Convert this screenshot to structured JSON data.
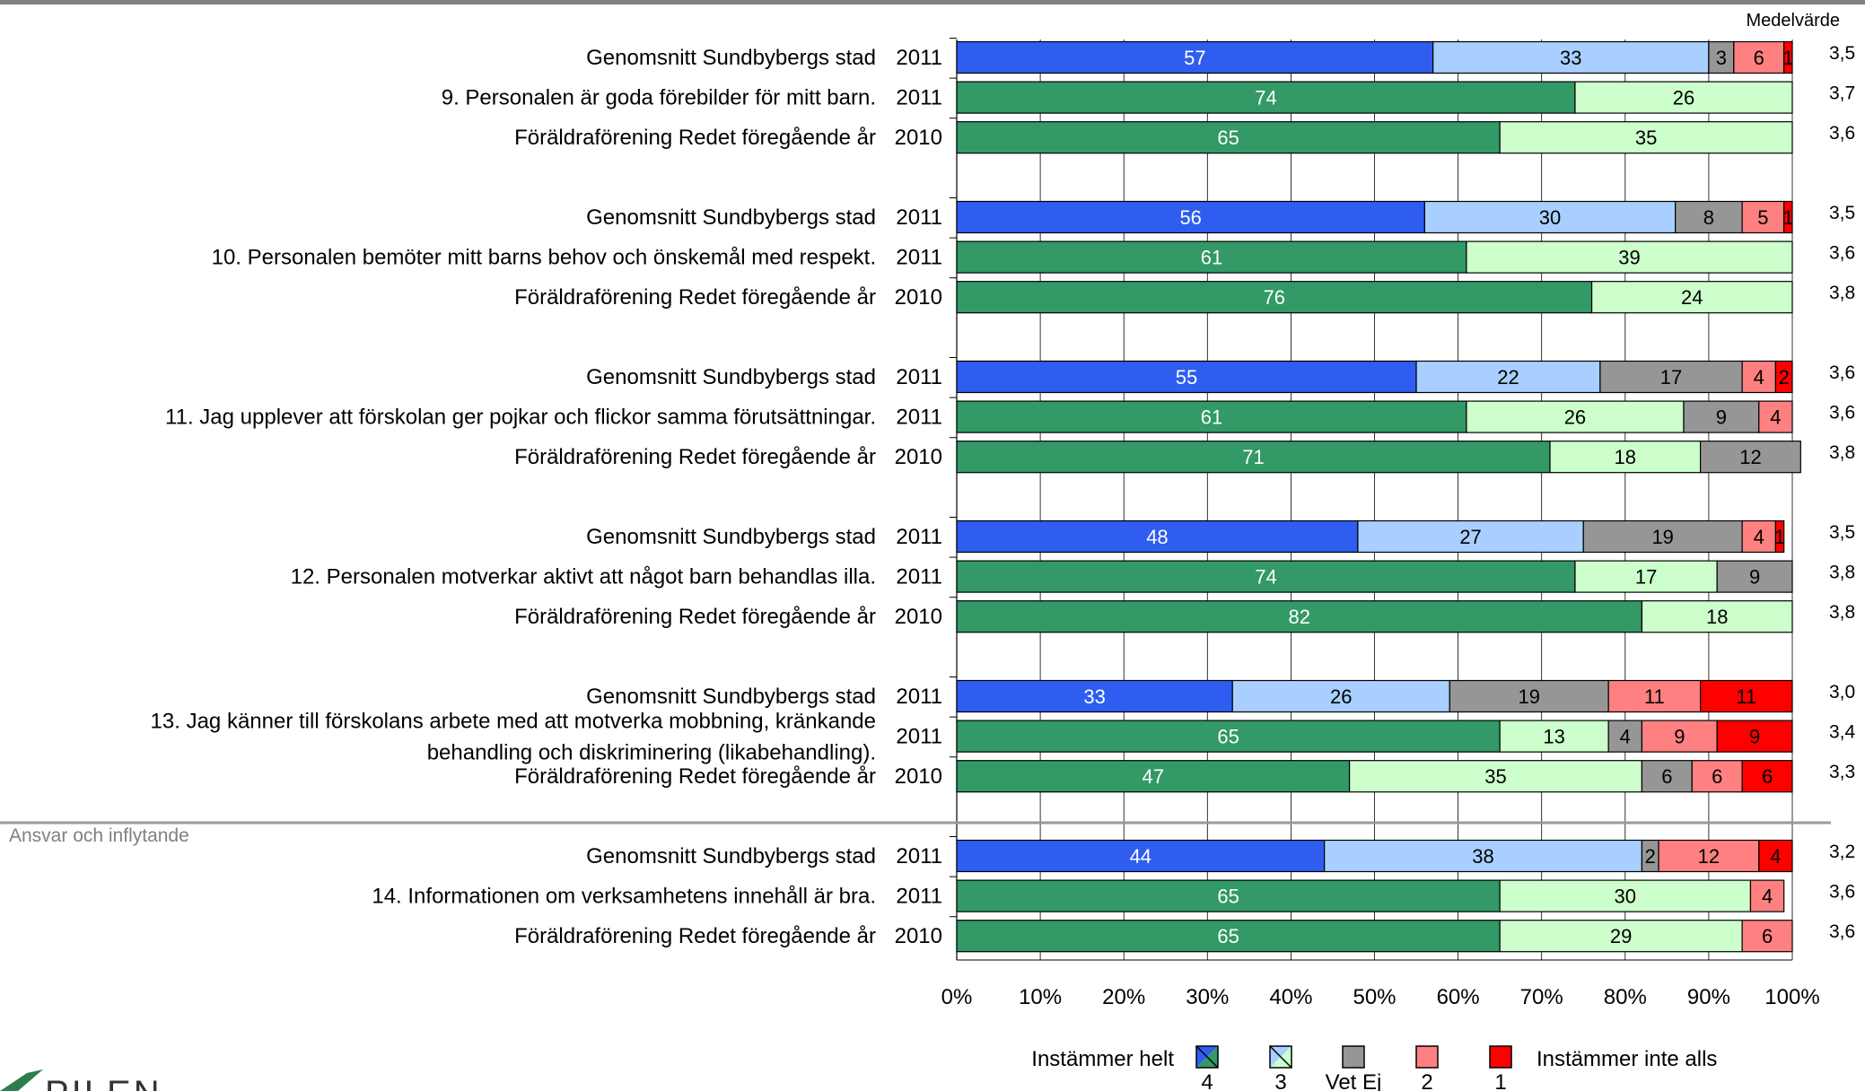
{
  "chart_data": {
    "type": "bar",
    "stacked": "percent",
    "orientation": "horizontal",
    "mean_header": "Medelvärde",
    "section_label": "Ansvar och inflytande",
    "xaxis": {
      "min": 0,
      "max": 100,
      "ticks": [
        "0%",
        "10%",
        "20%",
        "30%",
        "40%",
        "50%",
        "60%",
        "70%",
        "80%",
        "90%",
        "100%"
      ]
    },
    "segment_keys": [
      "4",
      "3",
      "Vet Ej",
      "2",
      "1"
    ],
    "colors": {
      "blue_4": "#2E5DF0",
      "blue_3": "#A8CFFF",
      "green_4": "#339966",
      "green_3": "#CCFFCC",
      "vetej": "#969696",
      "2": "#FF8080",
      "1": "#FF0000",
      "separator": "#999999",
      "grid": "#000000"
    },
    "groups": [
      {
        "question": "9.  Personalen är goda förebilder för mitt barn.",
        "rows": [
          {
            "label": "Genomsnitt Sundbybergs stad",
            "year": "2011",
            "scheme": "blue",
            "values": [
              57,
              33,
              3,
              6,
              1
            ],
            "mean": "3,5"
          },
          {
            "label": "9.  Personalen är goda förebilder för mitt barn.",
            "year": "2011",
            "scheme": "green",
            "values": [
              74,
              26,
              0,
              0,
              0
            ],
            "mean": "3,7"
          },
          {
            "label": "Föräldraförening Redet föregående år",
            "year": "2010",
            "scheme": "green",
            "values": [
              65,
              35,
              0,
              0,
              0
            ],
            "mean": "3,6"
          }
        ]
      },
      {
        "question": "10.  Personalen bemöter mitt barns behov och önskemål med respekt.",
        "rows": [
          {
            "label": "Genomsnitt Sundbybergs stad",
            "year": "2011",
            "scheme": "blue",
            "values": [
              56,
              30,
              8,
              5,
              1
            ],
            "mean": "3,5"
          },
          {
            "label": "10.  Personalen bemöter mitt barns behov och önskemål med respekt.",
            "year": "2011",
            "scheme": "green",
            "values": [
              61,
              39,
              0,
              0,
              0
            ],
            "mean": "3,6"
          },
          {
            "label": "Föräldraförening Redet föregående år",
            "year": "2010",
            "scheme": "green",
            "values": [
              76,
              24,
              0,
              0,
              0
            ],
            "mean": "3,8"
          }
        ]
      },
      {
        "question": "11.  Jag upplever att förskolan ger pojkar och flickor samma förutsättningar.",
        "rows": [
          {
            "label": "Genomsnitt Sundbybergs stad",
            "year": "2011",
            "scheme": "blue",
            "values": [
              55,
              22,
              17,
              4,
              2
            ],
            "mean": "3,6"
          },
          {
            "label": "11.  Jag upplever att förskolan ger pojkar och flickor samma förutsättningar.",
            "year": "2011",
            "scheme": "green",
            "values": [
              61,
              26,
              9,
              4,
              0
            ],
            "mean": "3,6"
          },
          {
            "label": "Föräldraförening Redet föregående år",
            "year": "2010",
            "scheme": "green",
            "values": [
              71,
              18,
              12,
              0,
              0
            ],
            "mean": "3,8"
          }
        ]
      },
      {
        "question": "12.  Personalen motverkar aktivt att något barn behandlas illa.",
        "rows": [
          {
            "label": "Genomsnitt Sundbybergs stad",
            "year": "2011",
            "scheme": "blue",
            "values": [
              48,
              27,
              19,
              4,
              1
            ],
            "mean": "3,5"
          },
          {
            "label": "12.  Personalen motverkar aktivt att något barn behandlas illa.",
            "year": "2011",
            "scheme": "green",
            "values": [
              74,
              17,
              9,
              0,
              0
            ],
            "mean": "3,8"
          },
          {
            "label": "Föräldraförening Redet föregående år",
            "year": "2010",
            "scheme": "green",
            "values": [
              82,
              18,
              0,
              0,
              0
            ],
            "mean": "3,8"
          }
        ]
      },
      {
        "question": "13.  Jag känner till förskolans arbete med att motverka mobbning, kränkande behandling och diskriminering (likabehandling).",
        "rows": [
          {
            "label": "Genomsnitt Sundbybergs stad",
            "year": "2011",
            "scheme": "blue",
            "values": [
              33,
              26,
              19,
              11,
              11
            ],
            "mean": "3,0"
          },
          {
            "label": [
              "13.  Jag känner till förskolans arbete med att motverka mobbning, kränkande",
              "behandling och diskriminering (likabehandling)."
            ],
            "year": "2011",
            "scheme": "green",
            "values": [
              65,
              13,
              4,
              9,
              9
            ],
            "mean": "3,4"
          },
          {
            "label": "Föräldraförening Redet föregående år",
            "year": "2010",
            "scheme": "green",
            "values": [
              47,
              35,
              6,
              6,
              6
            ],
            "mean": "3,3"
          }
        ]
      },
      {
        "question": "14.  Informationen om verksamhetens innehåll är bra.",
        "rows": [
          {
            "label": "Genomsnitt Sundbybergs stad",
            "year": "2011",
            "scheme": "blue",
            "values": [
              44,
              38,
              2,
              12,
              4
            ],
            "mean": "3,2"
          },
          {
            "label": "14.  Informationen om verksamhetens innehåll är bra.",
            "year": "2011",
            "scheme": "green",
            "values": [
              65,
              30,
              0,
              4,
              0
            ],
            "mean": "3,6"
          },
          {
            "label": "Föräldraförening Redet föregående år",
            "year": "2010",
            "scheme": "green",
            "values": [
              65,
              29,
              0,
              6,
              0
            ],
            "mean": "3,6"
          }
        ]
      }
    ],
    "legend": {
      "left_text": "Instämmer helt",
      "right_text": "Instämmer inte alls",
      "items": [
        {
          "key": "4",
          "label": "4"
        },
        {
          "key": "3",
          "label": "3"
        },
        {
          "key": "vetej",
          "label": "Vet Ej"
        },
        {
          "key": "2",
          "label": "2"
        },
        {
          "key": "1",
          "label": "1"
        }
      ]
    }
  },
  "logo": {
    "text": "PILEN"
  }
}
